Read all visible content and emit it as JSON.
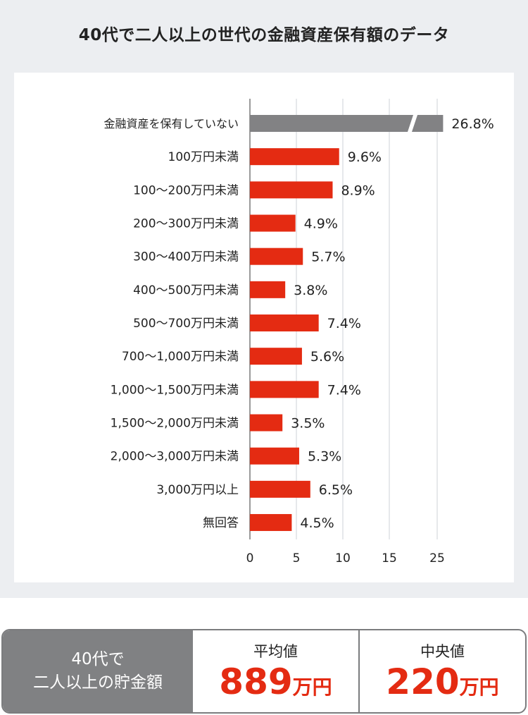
{
  "title": "40代で二人以上の世代の金融資産保有額のデータ",
  "colors": {
    "bar": "#e42b12",
    "bar_highlight": "#828284",
    "grid": "#e6e8eb",
    "axis": "#9a9a9a"
  },
  "chart_data": {
    "type": "bar",
    "orientation": "horizontal",
    "title": "40代で二人以上の世代の金融資産保有額のデータ",
    "categories": [
      "金融資産を保有していない",
      "100万円未満",
      "100～200万円未満",
      "200～300万円未満",
      "300～400万円未満",
      "400～500万円未満",
      "500～700万円未満",
      "700～1,000万円未満",
      "1,000～1,500万円未満",
      "1,500～2,000万円未満",
      "2,000～3,000万円未満",
      "3,000万円以上",
      "無回答"
    ],
    "values": [
      26.8,
      9.6,
      8.9,
      4.9,
      5.7,
      3.8,
      7.4,
      5.6,
      7.4,
      3.5,
      5.3,
      6.5,
      4.5
    ],
    "value_labels": [
      "26.8%",
      "9.6%",
      "8.9%",
      "4.9%",
      "5.7%",
      "3.8%",
      "7.4%",
      "5.6%",
      "7.4%",
      "3.5%",
      "5.3%",
      "6.5%",
      "4.5%"
    ],
    "xticks": [
      "0",
      "5",
      "10",
      "15",
      "25"
    ],
    "xtick_values": [
      0,
      5,
      10,
      15,
      25
    ],
    "axis_break": true,
    "unit": "%",
    "grid": true
  },
  "summary": {
    "label_line1": "40代で",
    "label_line2": "二人以上の貯金額",
    "average": {
      "heading": "平均値",
      "value": "889",
      "unit": "万円"
    },
    "median": {
      "heading": "中央値",
      "value": "220",
      "unit": "万円"
    }
  }
}
